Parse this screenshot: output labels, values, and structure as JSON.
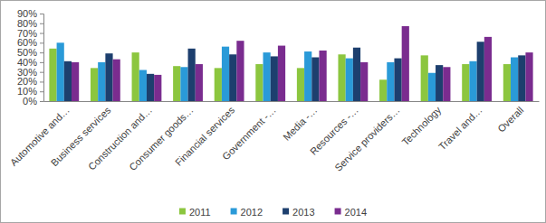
{
  "chart_data": {
    "type": "bar",
    "categories": [
      "Automotive and…",
      "Business services",
      "Construction and…",
      "Consumer goods…",
      "Financial services",
      "Government -…",
      "Media -…",
      "Resources -…",
      "Service providers…",
      "Technology",
      "Travel and…",
      "Overall"
    ],
    "series": [
      {
        "name": "2011",
        "color": "#8cc63f",
        "values": [
          54,
          34,
          50,
          36,
          34,
          38,
          34,
          48,
          22,
          47,
          38,
          38
        ]
      },
      {
        "name": "2012",
        "color": "#2a9ad8",
        "values": [
          60,
          40,
          32,
          35,
          56,
          50,
          51,
          44,
          40,
          29,
          41,
          45
        ]
      },
      {
        "name": "2013",
        "color": "#1d3f6e",
        "values": [
          41,
          49,
          28,
          54,
          48,
          46,
          45,
          55,
          44,
          37,
          61,
          47
        ]
      },
      {
        "name": "2014",
        "color": "#7a2c8f",
        "values": [
          40,
          43,
          27,
          38,
          62,
          57,
          52,
          40,
          77,
          35,
          66,
          50
        ]
      }
    ],
    "ylim": [
      0,
      90
    ],
    "yticks": [
      {
        "value": 0,
        "label": "0%"
      },
      {
        "value": 10,
        "label": "10%"
      },
      {
        "value": 20,
        "label": "20%"
      },
      {
        "value": 30,
        "label": "30%"
      },
      {
        "value": 40,
        "label": "40%"
      },
      {
        "value": 50,
        "label": "50%"
      },
      {
        "value": 60,
        "label": "60%"
      },
      {
        "value": 70,
        "label": "70%"
      },
      {
        "value": 80,
        "label": "80%"
      },
      {
        "value": 90,
        "label": "90%"
      }
    ],
    "grid": false,
    "legend": "bottom"
  }
}
